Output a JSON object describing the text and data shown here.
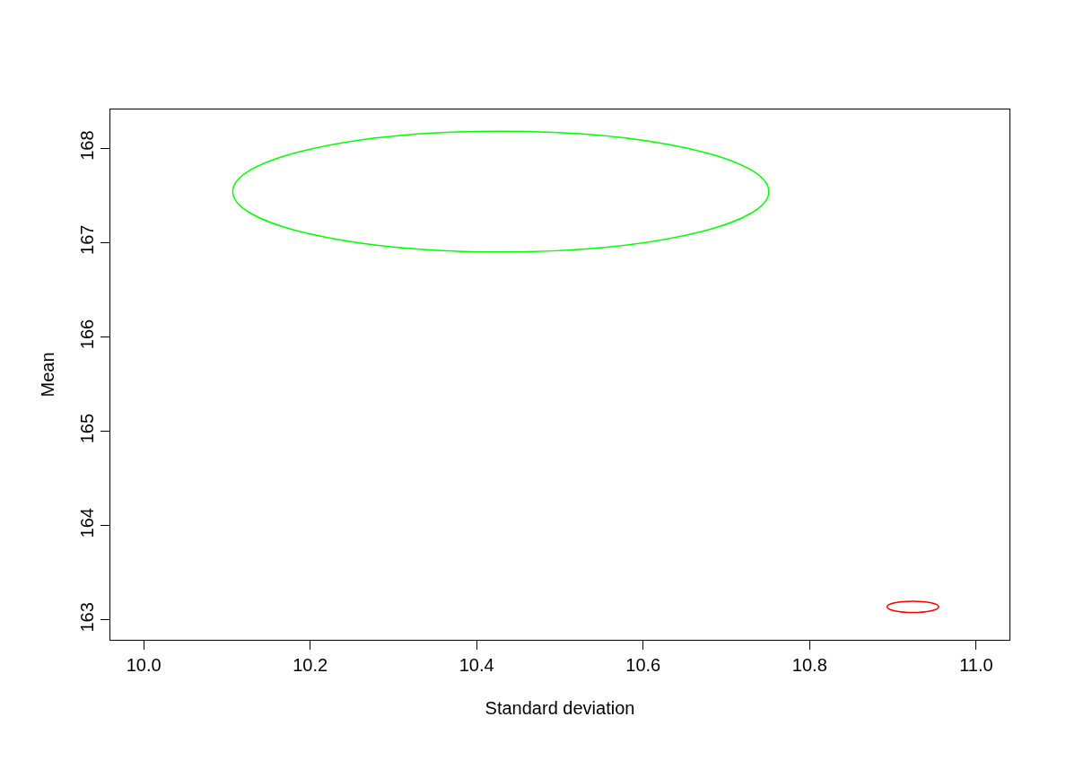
{
  "chart_data": {
    "type": "line",
    "xlabel": "Standard deviation",
    "ylabel": "Mean",
    "xlim": [
      9.96,
      11.04
    ],
    "ylim": [
      162.79,
      168.41
    ],
    "xticks": [
      {
        "value": 10,
        "label": "10.0"
      },
      10.2,
      10.4,
      10.6,
      10.8,
      {
        "value": 11,
        "label": "11.0"
      }
    ],
    "yticks": [
      163,
      164,
      165,
      166,
      167,
      168
    ],
    "grid": false
  }
}
